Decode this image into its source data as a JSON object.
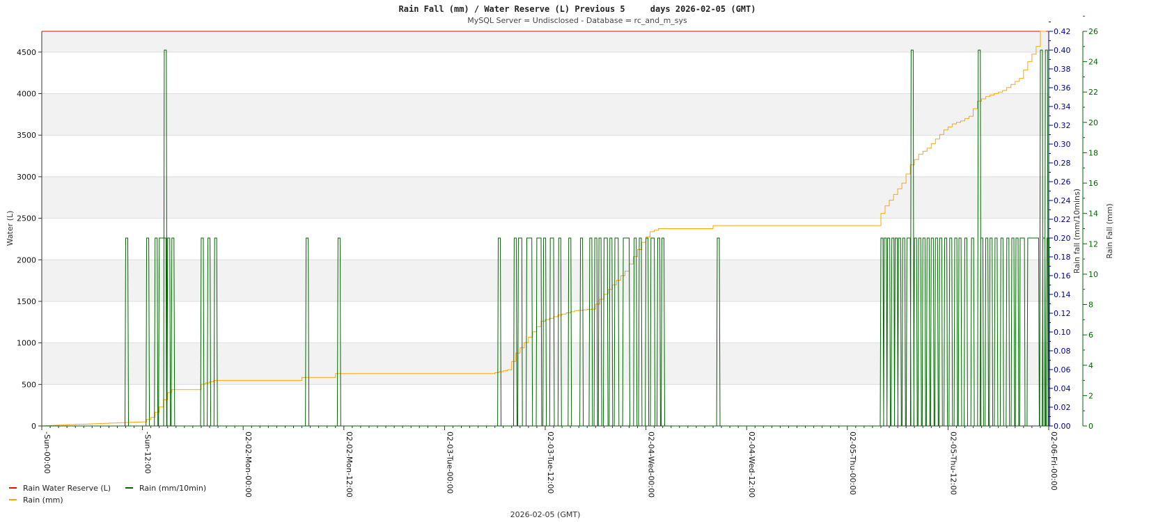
{
  "chart_data": {
    "type": "line",
    "title": "Rain Fall (mm) / Water Reserve (L) Previous 5     days 2026-02-05 (GMT)",
    "subtitle": "MySQL Server = Undisclosed - Database = rc_and_m_sys",
    "xlabel": "2026-02-05 (GMT)",
    "x_tick_labels": [
      "-Sun-00:00",
      "-Sun-12:00",
      "02-02-Mon-00:00",
      "02-02-Mon-12:00",
      "02-03-Tue-00:00",
      "02-03-Tue-12:00",
      "02-04-Wed-00:00",
      "02-04-Wed-12:00",
      "02-05-Thu-00:00",
      "02-05-Thu-12:00",
      "02-06-Fri-00:00"
    ],
    "x_range_hours": [
      0,
      120
    ],
    "grid": true,
    "legend_placement": "bottom-left",
    "axes": {
      "left": {
        "label": "Water (L)",
        "ylim": [
          0,
          4750
        ],
        "ticks": [
          0,
          500,
          1000,
          1500,
          2000,
          2500,
          3000,
          3500,
          4000,
          4500
        ],
        "color": "#222222"
      },
      "right_1": {
        "label": "Rain fall (mm/10mins)",
        "ylim": [
          0,
          0.42
        ],
        "ticks": [
          "0.00",
          "0.02",
          "0.04",
          "0.06",
          "0.08",
          "0.10",
          "0.12",
          "0.14",
          "0.16",
          "0.18",
          "0.20",
          "0.22",
          "0.24",
          "0.26",
          "0.28",
          "0.30",
          "0.32",
          "0.34",
          "0.36",
          "0.38",
          "0.40",
          "0.42"
        ],
        "color": "#00008b"
      },
      "right_2": {
        "label": "Rain Fall (mm)",
        "ylim": [
          0,
          26
        ],
        "ticks": [
          0,
          2,
          4,
          6,
          8,
          10,
          12,
          14,
          16,
          18,
          20,
          22,
          24,
          26
        ],
        "color": "#006400"
      }
    },
    "series": [
      {
        "name": "Rain Water Reserve (L)",
        "color": "#ff0000",
        "axis": "left",
        "x": [
          0,
          120
        ],
        "y": [
          4750,
          4750
        ]
      },
      {
        "name": "Rain (mm)",
        "color": "#ffa500",
        "axis": "right_2",
        "x": [
          0,
          10,
          12.5,
          13.5,
          14.5,
          15.5,
          16,
          17,
          19,
          19.5,
          21,
          31,
          31.2,
          35,
          35.2,
          54,
          56,
          57,
          59,
          60,
          62,
          64,
          66,
          68,
          70,
          72,
          73,
          74,
          80,
          80.5,
          100,
          100.5,
          101,
          103,
          104,
          105,
          106,
          107,
          108,
          109,
          110,
          111,
          112,
          113,
          115,
          117,
          118,
          119,
          119.7
        ],
        "y": [
          0,
          0.22,
          0.27,
          0.57,
          1.25,
          2.2,
          2.4,
          2.4,
          2.4,
          2.75,
          3.0,
          3.0,
          3.2,
          3.2,
          3.45,
          3.45,
          3.7,
          4.8,
          6.2,
          6.9,
          7.3,
          7.6,
          7.7,
          9.0,
          10.2,
          12.1,
          12.8,
          13.0,
          13.0,
          13.2,
          13.2,
          14.0,
          14.5,
          16.0,
          17.2,
          17.9,
          18.3,
          18.9,
          19.5,
          19.9,
          20.1,
          20.4,
          21.4,
          21.7,
          22.1,
          22.9,
          24.0,
          25.0,
          26.0
        ]
      },
      {
        "name": "Rain (mm/10min)",
        "color": "#006400",
        "axis": "right_1",
        "events": [
          {
            "h": 10.0,
            "v": 0.2
          },
          {
            "h": 12.5,
            "v": 0.2
          },
          {
            "h": 13.5,
            "v": 0.2
          },
          {
            "h": 14.0,
            "v": 0.2,
            "w": 0.8
          },
          {
            "h": 14.6,
            "v": 0.4
          },
          {
            "h": 15.0,
            "v": 0.2
          },
          {
            "h": 15.5,
            "v": 0.2
          },
          {
            "h": 19.0,
            "v": 0.2
          },
          {
            "h": 19.8,
            "v": 0.2
          },
          {
            "h": 20.6,
            "v": 0.2
          },
          {
            "h": 31.5,
            "v": 0.2
          },
          {
            "h": 35.3,
            "v": 0.2
          },
          {
            "h": 54.4,
            "v": 0.2
          },
          {
            "h": 56.3,
            "v": 0.2
          },
          {
            "h": 56.8,
            "v": 0.2,
            "w": 0.4
          },
          {
            "h": 57.8,
            "v": 0.2,
            "w": 0.6
          },
          {
            "h": 59.0,
            "v": 0.2,
            "w": 0.5
          },
          {
            "h": 59.8,
            "v": 0.2
          },
          {
            "h": 60.6,
            "v": 0.2,
            "w": 0.4
          },
          {
            "h": 61.6,
            "v": 0.2
          },
          {
            "h": 62.8,
            "v": 0.2
          },
          {
            "h": 64.2,
            "v": 0.2
          },
          {
            "h": 65.3,
            "v": 0.2
          },
          {
            "h": 65.9,
            "v": 0.2
          },
          {
            "h": 66.4,
            "v": 0.2
          },
          {
            "h": 67.0,
            "v": 0.2,
            "w": 0.4
          },
          {
            "h": 67.7,
            "v": 0.2
          },
          {
            "h": 68.3,
            "v": 0.2,
            "w": 0.4
          },
          {
            "h": 69.3,
            "v": 0.2,
            "w": 0.7
          },
          {
            "h": 70.6,
            "v": 0.2
          },
          {
            "h": 71.2,
            "v": 0.2
          },
          {
            "h": 72.0,
            "v": 0.2
          },
          {
            "h": 72.6,
            "v": 0.2,
            "w": 0.4
          },
          {
            "h": 73.4,
            "v": 0.2
          },
          {
            "h": 73.9,
            "v": 0.2
          },
          {
            "h": 80.5,
            "v": 0.2
          },
          {
            "h": 100.0,
            "v": 0.2
          },
          {
            "h": 100.4,
            "v": 0.2
          },
          {
            "h": 100.8,
            "v": 0.2
          },
          {
            "h": 101.3,
            "v": 0.2
          },
          {
            "h": 101.7,
            "v": 0.2
          },
          {
            "h": 102.1,
            "v": 0.2
          },
          {
            "h": 102.6,
            "v": 0.2
          },
          {
            "h": 103.1,
            "v": 0.2,
            "w": 0.4
          },
          {
            "h": 103.6,
            "v": 0.4
          },
          {
            "h": 104.0,
            "v": 0.2
          },
          {
            "h": 104.5,
            "v": 0.2
          },
          {
            "h": 105.0,
            "v": 0.2
          },
          {
            "h": 105.5,
            "v": 0.2
          },
          {
            "h": 106.0,
            "v": 0.2
          },
          {
            "h": 106.5,
            "v": 0.2
          },
          {
            "h": 107.0,
            "v": 0.2
          },
          {
            "h": 107.6,
            "v": 0.2
          },
          {
            "h": 108.2,
            "v": 0.2
          },
          {
            "h": 108.8,
            "v": 0.2
          },
          {
            "h": 109.3,
            "v": 0.2
          },
          {
            "h": 110.0,
            "v": 0.2
          },
          {
            "h": 110.8,
            "v": 0.2
          },
          {
            "h": 111.6,
            "v": 0.4
          },
          {
            "h": 111.9,
            "v": 0.2
          },
          {
            "h": 112.5,
            "v": 0.2
          },
          {
            "h": 113.0,
            "v": 0.2
          },
          {
            "h": 113.6,
            "v": 0.2
          },
          {
            "h": 114.3,
            "v": 0.2
          },
          {
            "h": 115.0,
            "v": 0.2
          },
          {
            "h": 115.6,
            "v": 0.2
          },
          {
            "h": 116.1,
            "v": 0.2
          },
          {
            "h": 116.6,
            "v": 0.2,
            "w": 0.5
          },
          {
            "h": 117.5,
            "v": 0.2,
            "w": 1.3
          },
          {
            "h": 119.0,
            "v": 0.4
          },
          {
            "h": 119.3,
            "v": 0.2
          },
          {
            "h": 119.6,
            "v": 0.4
          },
          {
            "h": 119.8,
            "v": 0.2
          }
        ]
      }
    ]
  }
}
